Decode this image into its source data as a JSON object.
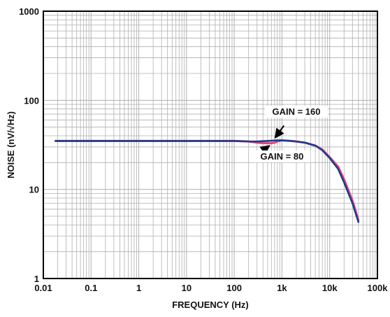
{
  "chart_data": {
    "type": "line",
    "title": "",
    "xlabel": "FREQUENCY (Hz)",
    "ylabel": "NOISE (nV/√Hz)",
    "xscale": "log",
    "yscale": "log",
    "xlim": [
      0.01,
      100000
    ],
    "ylim": [
      1,
      1000
    ],
    "grid": true,
    "x_tick_labels": [
      "0.01",
      "0.1",
      "1",
      "10",
      "100",
      "1k",
      "10k",
      "100k"
    ],
    "y_tick_labels": [
      "1",
      "10",
      "100",
      "1000"
    ],
    "colors": {
      "gain_160": "#e0457b",
      "gain_80": "#1f3a8a",
      "grid": "#b0b0b0",
      "frame": "#000000"
    },
    "series": [
      {
        "name": "GAIN = 160",
        "color": "#e0457b",
        "x": [
          0.018,
          0.1,
          1,
          10,
          100,
          200,
          300,
          400,
          500,
          600,
          700,
          800,
          1000,
          1500,
          2000,
          3000,
          5000,
          7000,
          10000,
          15000,
          20000,
          30000,
          40000
        ],
        "y": [
          35,
          35,
          35,
          35,
          35,
          34.5,
          33.5,
          33,
          33,
          33,
          33.5,
          34.5,
          35.5,
          35,
          34.5,
          33.5,
          31,
          28,
          23,
          18,
          13,
          7.5,
          4.5
        ]
      },
      {
        "name": "GAIN = 80",
        "color": "#1f3a8a",
        "x": [
          0.018,
          0.1,
          1,
          10,
          100,
          200,
          300,
          400,
          500,
          600,
          700,
          800,
          1000,
          1500,
          2000,
          3000,
          5000,
          7000,
          10000,
          15000,
          20000,
          30000,
          40000
        ],
        "y": [
          35,
          35,
          35,
          35,
          35,
          34.5,
          34.5,
          34.8,
          35,
          35.2,
          35.4,
          35.5,
          35.5,
          35,
          34.5,
          33.5,
          31,
          27.5,
          22.5,
          17,
          12,
          7,
          4.3
        ]
      }
    ],
    "annotations": [
      {
        "text": "GAIN = 160",
        "x": 2000,
        "y": 70,
        "arrow_from": [
          1100,
          52
        ],
        "arrow_to": [
          720,
          38
        ]
      },
      {
        "text": "GAIN = 80",
        "x": 1000,
        "y": 22,
        "arrow_from": [
          300,
          24.5
        ],
        "arrow_to": [
          550,
          31
        ]
      }
    ]
  }
}
